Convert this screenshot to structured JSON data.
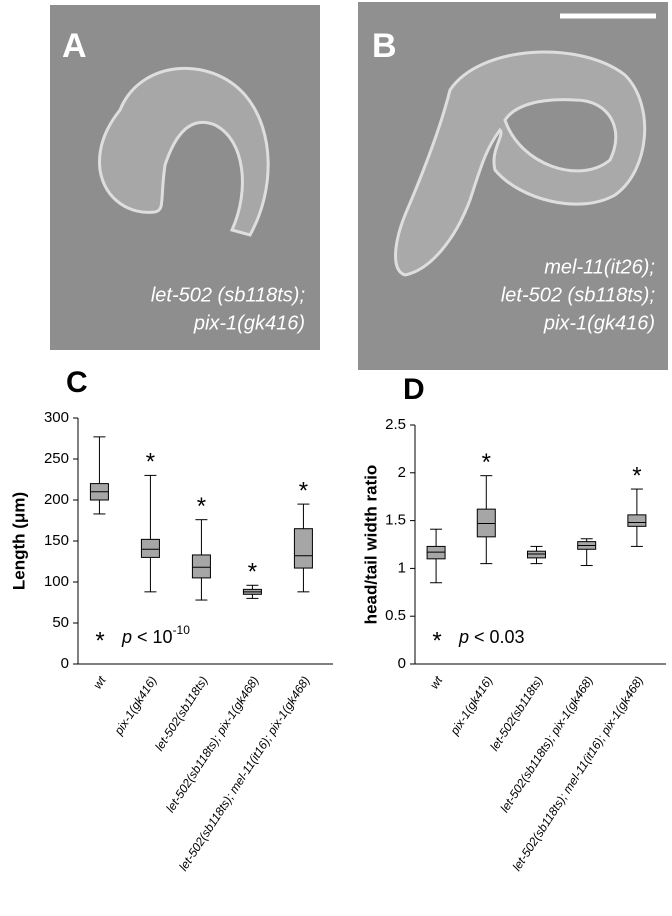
{
  "panels": [
    {
      "letter": "A",
      "caption": [
        "let-502 (sb118ts);",
        "pix-1(gk416)"
      ]
    },
    {
      "letter": "B",
      "caption": [
        "mel-11(it26);",
        "let-502 (sb118ts);",
        "pix-1(gk416)"
      ]
    }
  ],
  "chart_data": [
    {
      "type": "box",
      "panel_letter": "C",
      "y_label": "Length (μm)",
      "categories": [
        "wt",
        "pix-1(gk416)",
        "let-502(sb118ts)",
        "let-502(sb118ts); pix-1(gk468)",
        "let-502(sb118ts); mel-11(it16); pix-1(gk468)"
      ],
      "min": [
        183,
        88,
        78,
        80,
        88
      ],
      "q1": [
        200,
        130,
        105,
        85,
        117
      ],
      "median": [
        210,
        140,
        118,
        88,
        132
      ],
      "q3": [
        220,
        152,
        133,
        91,
        165
      ],
      "max": [
        277,
        230,
        176,
        96,
        195
      ],
      "annotations": [
        null,
        "*",
        "*",
        "*",
        "*"
      ],
      "note": {
        "symbol": "*",
        "text": [
          "p",
          " < 10",
          "-10"
        ]
      },
      "color": "#a6a6a6",
      "ylim": [
        0,
        300
      ],
      "yticks": [
        0,
        50,
        100,
        150,
        200,
        250,
        300
      ]
    },
    {
      "type": "box",
      "panel_letter": "D",
      "y_label": "head/tail width ratio",
      "categories": [
        "wt",
        "pix-1(gk416)",
        "let-502(sb118ts)",
        "let-502(sb118ts); pix-1(gk468)",
        "let-502(sb118ts); mel-11(it16); pix-1(gk468)"
      ],
      "min": [
        0.85,
        1.05,
        1.05,
        1.03,
        1.23
      ],
      "q1": [
        1.1,
        1.33,
        1.11,
        1.2,
        1.44
      ],
      "median": [
        1.17,
        1.47,
        1.15,
        1.24,
        1.48
      ],
      "q3": [
        1.23,
        1.62,
        1.18,
        1.28,
        1.56
      ],
      "max": [
        1.41,
        1.97,
        1.23,
        1.31,
        1.83
      ],
      "annotations": [
        null,
        "*",
        null,
        null,
        "*"
      ],
      "note": {
        "symbol": "*",
        "text": [
          "p",
          " < 0.03"
        ]
      },
      "color": "#a6a6a6",
      "ylim": [
        0,
        2.5
      ],
      "yticks": [
        0,
        0.5,
        1,
        1.5,
        2,
        2.5
      ]
    }
  ]
}
